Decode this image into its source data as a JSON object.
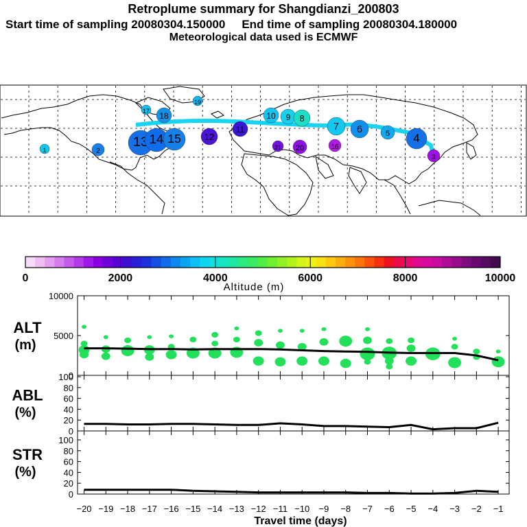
{
  "header": {
    "title": "Retroplume summary for Shangdianzi_200803",
    "start_label": "Start time of sampling 20080304.150000",
    "end_label": "End time of sampling 20080304.180000",
    "met_label": "Meteorological data used is ECMWF"
  },
  "colors": {
    "accent_plume": "#19d4f0",
    "scatter_green": "#22e05a",
    "line": "#000000",
    "scale_stops": [
      "#f7dcf7",
      "#eebdf2",
      "#e39ef0",
      "#d57ded",
      "#c55ceb",
      "#b33be8",
      "#9f1ae6",
      "#8a00e0",
      "#7000dc",
      "#5a00d6",
      "#3c0fd2",
      "#2a1ed8",
      "#1b33de",
      "#1450e4",
      "#0f6cea",
      "#0b88ef",
      "#09a4f2",
      "#0ac0f4",
      "#0cd6ef",
      "#10e0dc",
      "#16e6c0",
      "#1ee8a0",
      "#2aea80",
      "#3aec62",
      "#52ee46",
      "#70f032",
      "#90f224",
      "#b2f41a",
      "#d2f416",
      "#ecf214",
      "#f8e012",
      "#fcc810",
      "#fcae0e",
      "#fc920c",
      "#fc740c",
      "#fc520c",
      "#f8300e",
      "#f0101e",
      "#ec0a4a",
      "#e80870",
      "#e00890",
      "#d8089e",
      "#c80aa0",
      "#b00c98",
      "#980c8c",
      "#7e0c80",
      "#680a70",
      "#560a60",
      "#440a50"
    ]
  },
  "colorbar": {
    "ticks": [
      "0",
      "2000",
      "4000",
      "6000",
      "8000",
      "10000"
    ],
    "label": "Altitude (m)"
  },
  "map": {
    "plume_labels": [
      "17",
      "18",
      "19",
      "13",
      "14",
      "15",
      "12",
      "11",
      "10",
      "9",
      "8",
      "7",
      "6",
      "5",
      "4",
      "3",
      "2",
      "1",
      "20",
      "16",
      "21"
    ]
  },
  "chart_data": [
    {
      "type": "scatter",
      "panel": "ALT",
      "ylabel_line1": "ALT",
      "ylabel_line2": "(m)",
      "yticks": [
        "0",
        "5000",
        "10000"
      ],
      "ylim": [
        0,
        10000
      ],
      "xlim": [
        -20.3,
        -0.5
      ],
      "x": [
        -20,
        -19,
        -18,
        -17,
        -16,
        -15,
        -14,
        -13,
        -12,
        -11,
        -10,
        -9,
        -8,
        -7,
        -6,
        -5,
        -4,
        -3,
        -2,
        -1
      ],
      "median_line": [
        3400,
        3400,
        3350,
        3300,
        3300,
        3250,
        3300,
        3300,
        3300,
        3250,
        3150,
        3050,
        3000,
        2950,
        2850,
        2800,
        2800,
        2800,
        2500,
        1900
      ],
      "blobs": [
        [
          [
            -20,
            6100,
            1
          ],
          [
            -20,
            4000,
            2
          ],
          [
            -20,
            3200,
            4
          ],
          [
            -20,
            2600,
            3
          ]
        ],
        [
          [
            -19,
            4800,
            1
          ],
          [
            -19,
            3300,
            3
          ],
          [
            -19,
            2400,
            3
          ]
        ],
        [
          [
            -18,
            4400,
            2
          ],
          [
            -18,
            3100,
            5
          ]
        ],
        [
          [
            -17,
            4800,
            1
          ],
          [
            -17,
            3200,
            4
          ],
          [
            -17,
            2300,
            3
          ]
        ],
        [
          [
            -16,
            4900,
            1
          ],
          [
            -16,
            3600,
            2
          ],
          [
            -16,
            2600,
            4
          ]
        ],
        [
          [
            -15,
            4500,
            2
          ],
          [
            -15,
            2800,
            5
          ]
        ],
        [
          [
            -14,
            5100,
            2
          ],
          [
            -14,
            4000,
            2
          ],
          [
            -14,
            2800,
            5
          ]
        ],
        [
          [
            -13,
            5900,
            1
          ],
          [
            -13,
            4500,
            2
          ],
          [
            -13,
            2900,
            5
          ]
        ],
        [
          [
            -12,
            5300,
            2
          ],
          [
            -12,
            4100,
            3
          ],
          [
            -12,
            1800,
            4
          ]
        ],
        [
          [
            -11,
            5600,
            1
          ],
          [
            -11,
            3800,
            3
          ],
          [
            -11,
            1700,
            4
          ]
        ],
        [
          [
            -10,
            5600,
            1
          ],
          [
            -10,
            3600,
            3
          ],
          [
            -10,
            1800,
            4
          ]
        ],
        [
          [
            -9,
            5800,
            1
          ],
          [
            -9,
            4200,
            3
          ],
          [
            -9,
            1800,
            4
          ]
        ],
        [
          [
            -8,
            4300,
            5
          ],
          [
            -8,
            1500,
            4
          ]
        ],
        [
          [
            -7,
            5800,
            1
          ],
          [
            -7,
            4400,
            3
          ],
          [
            -7,
            2700,
            6
          ],
          [
            -7,
            1700,
            2
          ]
        ],
        [
          [
            -6,
            4300,
            2
          ],
          [
            -6,
            2800,
            6
          ],
          [
            -6,
            1800,
            3
          ],
          [
            -6,
            1100,
            2
          ]
        ],
        [
          [
            -5,
            4400,
            2
          ],
          [
            -5,
            3400,
            3
          ],
          [
            -5,
            1800,
            4
          ]
        ],
        [
          [
            -4,
            2700,
            6
          ]
        ],
        [
          [
            -3,
            4600,
            1
          ],
          [
            -3,
            3600,
            2
          ],
          [
            -3,
            1600,
            5
          ]
        ],
        [
          [
            -2,
            3000,
            2
          ],
          [
            -2,
            2300,
            2
          ]
        ],
        [
          [
            -1,
            3000,
            1
          ],
          [
            -1,
            1700,
            5
          ]
        ]
      ]
    },
    {
      "type": "line",
      "panel": "ABL",
      "ylabel_line1": "ABL",
      "ylabel_line2": "(%)",
      "yticks": [
        "0",
        "20",
        "40",
        "60",
        "80",
        "100"
      ],
      "ylim": [
        0,
        100
      ],
      "xlim": [
        -20.3,
        -0.5
      ],
      "x": [
        -20,
        -19,
        -18,
        -17,
        -16,
        -15,
        -14,
        -13,
        -12,
        -11,
        -10,
        -9,
        -8,
        -7,
        -6,
        -5,
        -4,
        -3,
        -2,
        -1
      ],
      "values": [
        13,
        13,
        12,
        12,
        13,
        13,
        12,
        11,
        11,
        14,
        12,
        9,
        9,
        8,
        7,
        11,
        3,
        5,
        5,
        15
      ]
    },
    {
      "type": "line",
      "panel": "STR",
      "ylabel_line1": "STR",
      "ylabel_line2": "(%)",
      "yticks": [
        "0",
        "20",
        "40",
        "60",
        "80",
        "100"
      ],
      "ylim": [
        0,
        100
      ],
      "xlim": [
        -20.3,
        -0.5
      ],
      "x": [
        -20,
        -19,
        -18,
        -17,
        -16,
        -15,
        -14,
        -13,
        -12,
        -11,
        -10,
        -9,
        -8,
        -7,
        -6,
        -5,
        -4,
        -3,
        -2,
        -1
      ],
      "values": [
        8,
        8,
        8,
        8,
        8,
        6,
        5,
        4,
        3,
        3,
        3,
        3,
        3,
        2,
        2,
        1,
        1,
        2,
        6,
        4
      ],
      "xticks": [
        "−20",
        "−19",
        "−18",
        "−17",
        "−16",
        "−15",
        "−14",
        "−13",
        "−12",
        "−11",
        "−10",
        "−9",
        "−8",
        "−7",
        "−6",
        "−5",
        "−4",
        "−3",
        "−2",
        "−1"
      ],
      "xlabel": "Travel time (days)"
    }
  ]
}
